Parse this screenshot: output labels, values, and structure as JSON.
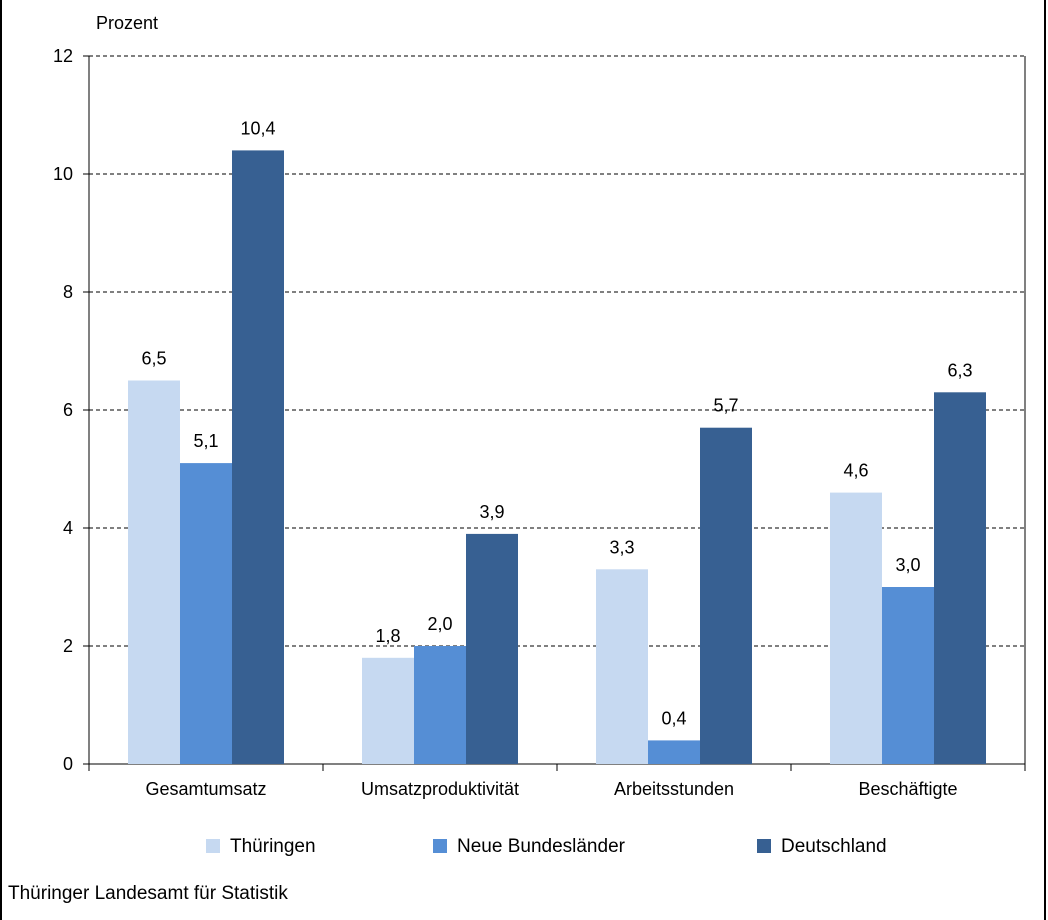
{
  "chart_data": {
    "type": "bar",
    "ylabel": "Prozent",
    "categories": [
      "Gesamtumsatz",
      "Umsatzproduktivität",
      "Arbeitsstunden",
      "Beschäftigte"
    ],
    "series": [
      {
        "name": "Thüringen",
        "color": "#c6d9f1",
        "values": [
          6.5,
          1.8,
          3.3,
          4.6
        ],
        "labels": [
          "6,5",
          "1,8",
          "3,3",
          "4,6"
        ]
      },
      {
        "name": "Neue Bundesländer",
        "color": "#558ed5",
        "values": [
          5.1,
          2.0,
          0.4,
          3.0
        ],
        "labels": [
          "5,1",
          "2,0",
          "0,4",
          "3,0"
        ]
      },
      {
        "name": "Deutschland",
        "color": "#376092",
        "values": [
          10.4,
          3.9,
          5.7,
          6.3
        ],
        "labels": [
          "10,4",
          "3,9",
          "5,7",
          "6,3"
        ]
      }
    ],
    "ylim": [
      0,
      12
    ],
    "yticks": [
      0,
      2,
      4,
      6,
      8,
      10,
      12
    ],
    "grid": true,
    "legend": "bottom"
  },
  "source": "Thüringer Landesamt für Statistik"
}
